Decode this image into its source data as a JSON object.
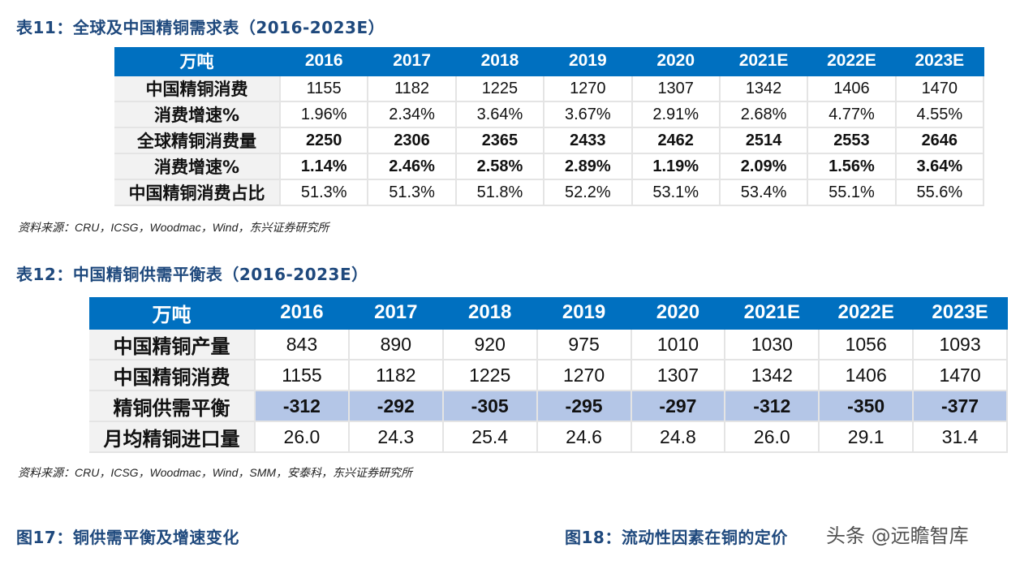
{
  "table1": {
    "title": "表11：全球及中国精铜需求表（2016-2023E）",
    "header": [
      "万吨",
      "2016",
      "2017",
      "2018",
      "2019",
      "2020",
      "2021E",
      "2022E",
      "2023E"
    ],
    "rows": [
      {
        "label": "中国精铜消费",
        "values": [
          "1155",
          "1182",
          "1225",
          "1270",
          "1307",
          "1342",
          "1406",
          "1470"
        ]
      },
      {
        "label": "消费增速%",
        "values": [
          "1.96%",
          "2.34%",
          "3.64%",
          "3.67%",
          "2.91%",
          "2.68%",
          "4.77%",
          "4.55%"
        ]
      },
      {
        "label": "全球精铜消费量",
        "values": [
          "2250",
          "2306",
          "2365",
          "2433",
          "2462",
          "2514",
          "2553",
          "2646"
        ]
      },
      {
        "label": "消费增速%",
        "values": [
          "1.14%",
          "2.46%",
          "2.58%",
          "2.89%",
          "1.19%",
          "2.09%",
          "1.56%",
          "3.64%"
        ]
      },
      {
        "label": "中国精铜消费占比",
        "values": [
          "51.3%",
          "51.3%",
          "51.8%",
          "52.2%",
          "53.1%",
          "53.4%",
          "55.1%",
          "55.6%"
        ]
      }
    ],
    "source": "资料来源：CRU，ICSG，Woodmac，Wind，东兴证券研究所"
  },
  "table2": {
    "title": "表12：中国精铜供需平衡表（2016-2023E）",
    "header": [
      "万吨",
      "2016",
      "2017",
      "2018",
      "2019",
      "2020",
      "2021E",
      "2022E",
      "2023E"
    ],
    "rows": [
      {
        "label": "中国精铜产量",
        "values": [
          "843",
          "890",
          "920",
          "975",
          "1010",
          "1030",
          "1056",
          "1093"
        ]
      },
      {
        "label": "中国精铜消费",
        "values": [
          "1155",
          "1182",
          "1225",
          "1270",
          "1307",
          "1342",
          "1406",
          "1470"
        ]
      },
      {
        "label": "精铜供需平衡",
        "values": [
          "-312",
          "-292",
          "-305",
          "-295",
          "-297",
          "-312",
          "-350",
          "-377"
        ]
      },
      {
        "label": "月均精铜进口量",
        "values": [
          "26.0",
          "24.3",
          "25.4",
          "24.6",
          "24.8",
          "26.0",
          "29.1",
          "31.4"
        ]
      }
    ],
    "source": "资料来源：CRU，ICSG，Woodmac，Wind，SMM，安泰科，东兴证券研究所"
  },
  "fig17_title": "图17：铜供需平衡及增速变化",
  "fig18_title": "图18：流动性因素在铜的定价",
  "watermark": "头条 @远瞻智库",
  "colors": {
    "header": "#0070c0",
    "title": "#1f497d",
    "highlight": "#b4c6e7"
  }
}
